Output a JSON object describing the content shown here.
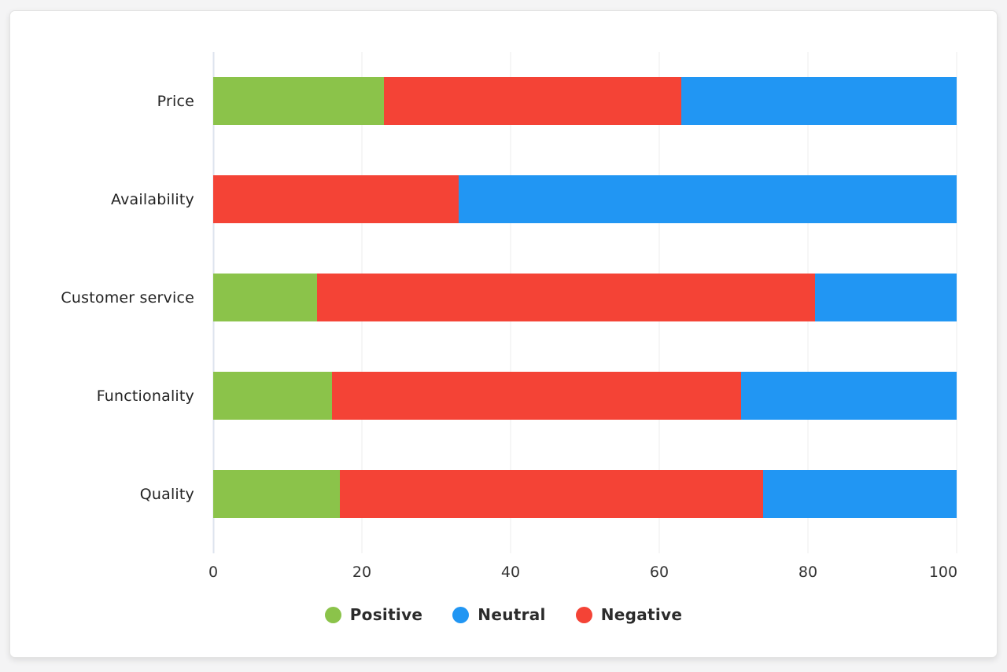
{
  "page": {
    "background": "#f4f4f5"
  },
  "card": {
    "background": "#ffffff",
    "border_color": "#e3e3e3"
  },
  "chart_data": {
    "type": "bar",
    "orientation": "horizontal",
    "stacked": true,
    "title": "",
    "categories": [
      "Price",
      "Availability",
      "Customer service",
      "Functionality",
      "Quality"
    ],
    "series": [
      {
        "name": "Positive",
        "color": "#8bc34a",
        "values": [
          23,
          0,
          14,
          16,
          17
        ]
      },
      {
        "name": "Negative",
        "color": "#f44336",
        "values": [
          40,
          33,
          67,
          55,
          57
        ]
      },
      {
        "name": "Neutral",
        "color": "#2196f3",
        "values": [
          37,
          67,
          19,
          29,
          26
        ]
      }
    ],
    "stack_order": [
      "Positive",
      "Negative",
      "Neutral"
    ],
    "x_axis": {
      "min": 0,
      "max": 100,
      "ticks": [
        "0",
        "20",
        "40",
        "60",
        "80",
        "100"
      ]
    },
    "grid": {
      "vertical": true,
      "color": "#ececec",
      "zero_line_color": "#dde3ee"
    },
    "legend": {
      "position": "bottom",
      "items": [
        {
          "label": "Positive",
          "color": "#8bc34a"
        },
        {
          "label": "Neutral",
          "color": "#2196f3"
        },
        {
          "label": "Negative",
          "color": "#f44336"
        }
      ]
    }
  }
}
